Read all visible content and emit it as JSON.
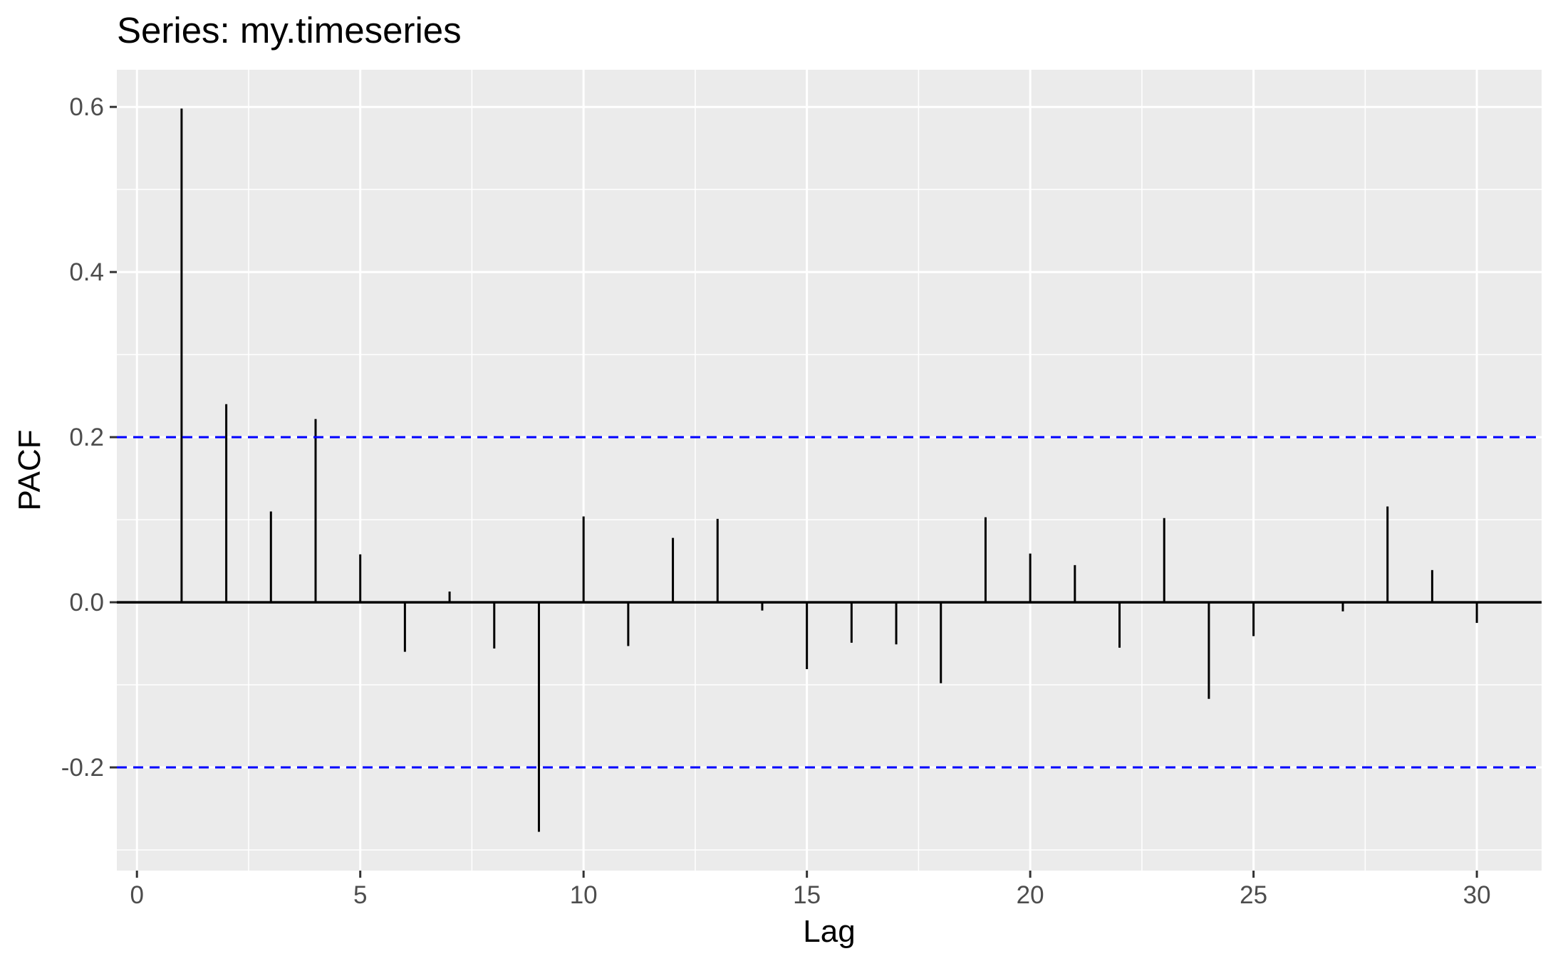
{
  "chart_data": {
    "type": "bar",
    "title": "Series: my.timeseries",
    "xlabel": "Lag",
    "ylabel": "PACF",
    "x": [
      1,
      2,
      3,
      4,
      5,
      6,
      7,
      8,
      9,
      10,
      11,
      12,
      13,
      14,
      15,
      16,
      17,
      18,
      19,
      20,
      21,
      22,
      23,
      24,
      25,
      26,
      27,
      28,
      29,
      30,
      31
    ],
    "values": [
      0.598,
      0.24,
      0.11,
      0.222,
      0.058,
      -0.06,
      0.013,
      -0.056,
      -0.278,
      0.104,
      -0.053,
      0.078,
      0.101,
      -0.01,
      -0.081,
      -0.049,
      -0.051,
      -0.098,
      0.103,
      0.059,
      0.045,
      -0.055,
      0.102,
      -0.117,
      -0.041,
      0.0,
      -0.011,
      0.116,
      0.039,
      -0.025,
      0.0
    ],
    "confidence_limits": [
      0.2,
      -0.2
    ],
    "xlim": [
      -0.45,
      31.45
    ],
    "ylim": [
      -0.325,
      0.645
    ],
    "x_ticks": [
      0,
      5,
      10,
      15,
      20,
      25,
      30
    ],
    "x_tick_labels": [
      "0",
      "5",
      "10",
      "15",
      "20",
      "25",
      "30"
    ],
    "y_ticks": [
      -0.2,
      0.0,
      0.2,
      0.4,
      0.6
    ],
    "y_tick_labels": [
      "-0.2",
      "0.0",
      "0.2",
      "0.4",
      "0.6"
    ],
    "grid": true,
    "colors": {
      "panel_background": "#ebebeb",
      "grid_major": "#ffffff",
      "spike": "#000000",
      "confidence_line": "#0000ff",
      "tick_label": "#4d4d4d"
    }
  }
}
